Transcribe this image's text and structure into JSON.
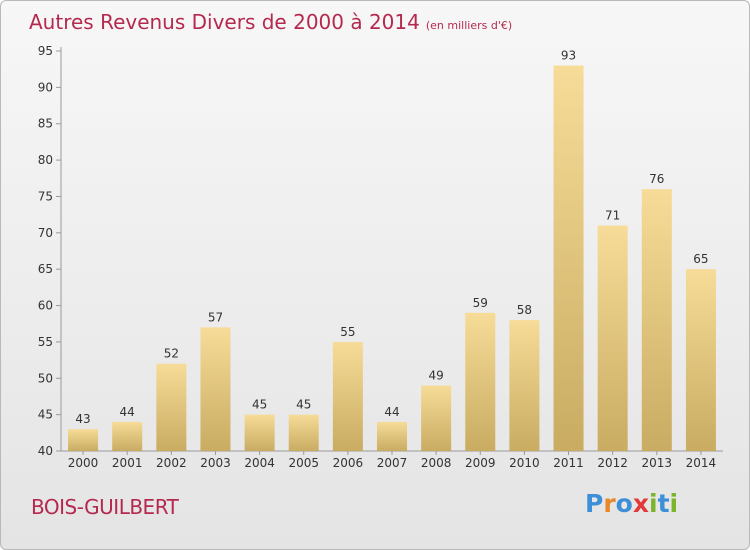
{
  "title": "Autres Revenus Divers de 2000 à 2014",
  "subtitle": "(en milliers d'€)",
  "commune": "BOIS-GUILBERT",
  "logo_text": "Proxiti",
  "colors": {
    "title": "#b5294f",
    "bar_light": "#f6dc98",
    "bar_dark": "#c9ac62",
    "logo": [
      "#3d8fd8",
      "#e8882a",
      "#3d8fd8",
      "#e23a3a",
      "#7ab52a",
      "#3d8fd8",
      "#7ab52a"
    ]
  },
  "chart_data": {
    "type": "bar",
    "title": "Autres Revenus Divers de 2000 à 2014",
    "subtitle": "(en milliers d'€)",
    "categories": [
      "2000",
      "2001",
      "2002",
      "2003",
      "2004",
      "2005",
      "2006",
      "2007",
      "2008",
      "2009",
      "2010",
      "2011",
      "2012",
      "2013",
      "2014"
    ],
    "values": [
      43,
      44,
      52,
      57,
      45,
      45,
      55,
      44,
      49,
      59,
      58,
      93,
      71,
      76,
      65
    ],
    "ylim": [
      40,
      95
    ],
    "yticks": [
      40,
      45,
      50,
      55,
      60,
      65,
      70,
      75,
      80,
      85,
      90,
      95
    ],
    "grid": false,
    "data_labels": true
  }
}
